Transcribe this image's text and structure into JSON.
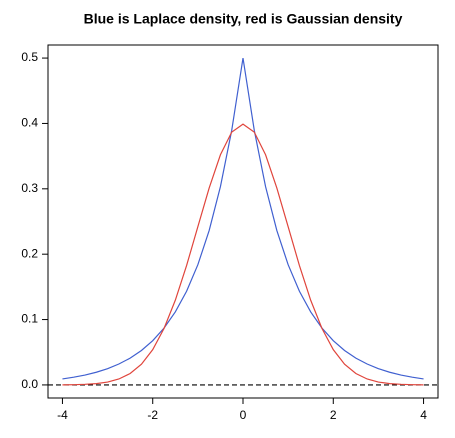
{
  "chart_data": {
    "type": "line",
    "title": "Blue is Laplace density, red is Gaussian density",
    "x": [
      -4,
      -3.75,
      -3.5,
      -3.25,
      -3,
      -2.75,
      -2.5,
      -2.25,
      -2,
      -1.75,
      -1.5,
      -1.25,
      -1,
      -0.75,
      -0.5,
      -0.25,
      0,
      0.25,
      0.5,
      0.75,
      1,
      1.25,
      1.5,
      1.75,
      2,
      2.25,
      2.5,
      2.75,
      3,
      3.25,
      3.5,
      3.75,
      4
    ],
    "series": [
      {
        "color": "#4060d0",
        "values": [
          0.0092,
          0.0118,
          0.0151,
          0.0194,
          0.0249,
          0.032,
          0.041,
          0.0527,
          0.0677,
          0.0869,
          0.1116,
          0.1433,
          0.1839,
          0.2362,
          0.3033,
          0.3894,
          0.5,
          0.3894,
          0.3033,
          0.2362,
          0.1839,
          0.1433,
          0.1116,
          0.0869,
          0.0677,
          0.0527,
          0.041,
          0.032,
          0.0249,
          0.0194,
          0.0151,
          0.0118,
          0.0092
        ]
      },
      {
        "color": "#e0453c",
        "values": [
          0.0001,
          0.0004,
          0.0009,
          0.002,
          0.0044,
          0.0091,
          0.0175,
          0.0317,
          0.054,
          0.0863,
          0.1295,
          0.1826,
          0.242,
          0.3011,
          0.3521,
          0.3867,
          0.3989,
          0.3867,
          0.3521,
          0.3011,
          0.242,
          0.1826,
          0.1295,
          0.0863,
          0.054,
          0.0317,
          0.0175,
          0.0091,
          0.0044,
          0.002,
          0.0009,
          0.0004,
          0.0001
        ]
      }
    ],
    "hline": 0,
    "xlim": [
      -4.32,
      4.32
    ],
    "xticks": [
      -4,
      -2,
      0,
      2,
      4
    ],
    "ylim": [
      -0.02,
      0.52
    ],
    "yticks": [
      {
        "value": 0,
        "label": "0.0"
      },
      0.1,
      0.2,
      0.3,
      0.4,
      0.5
    ]
  }
}
